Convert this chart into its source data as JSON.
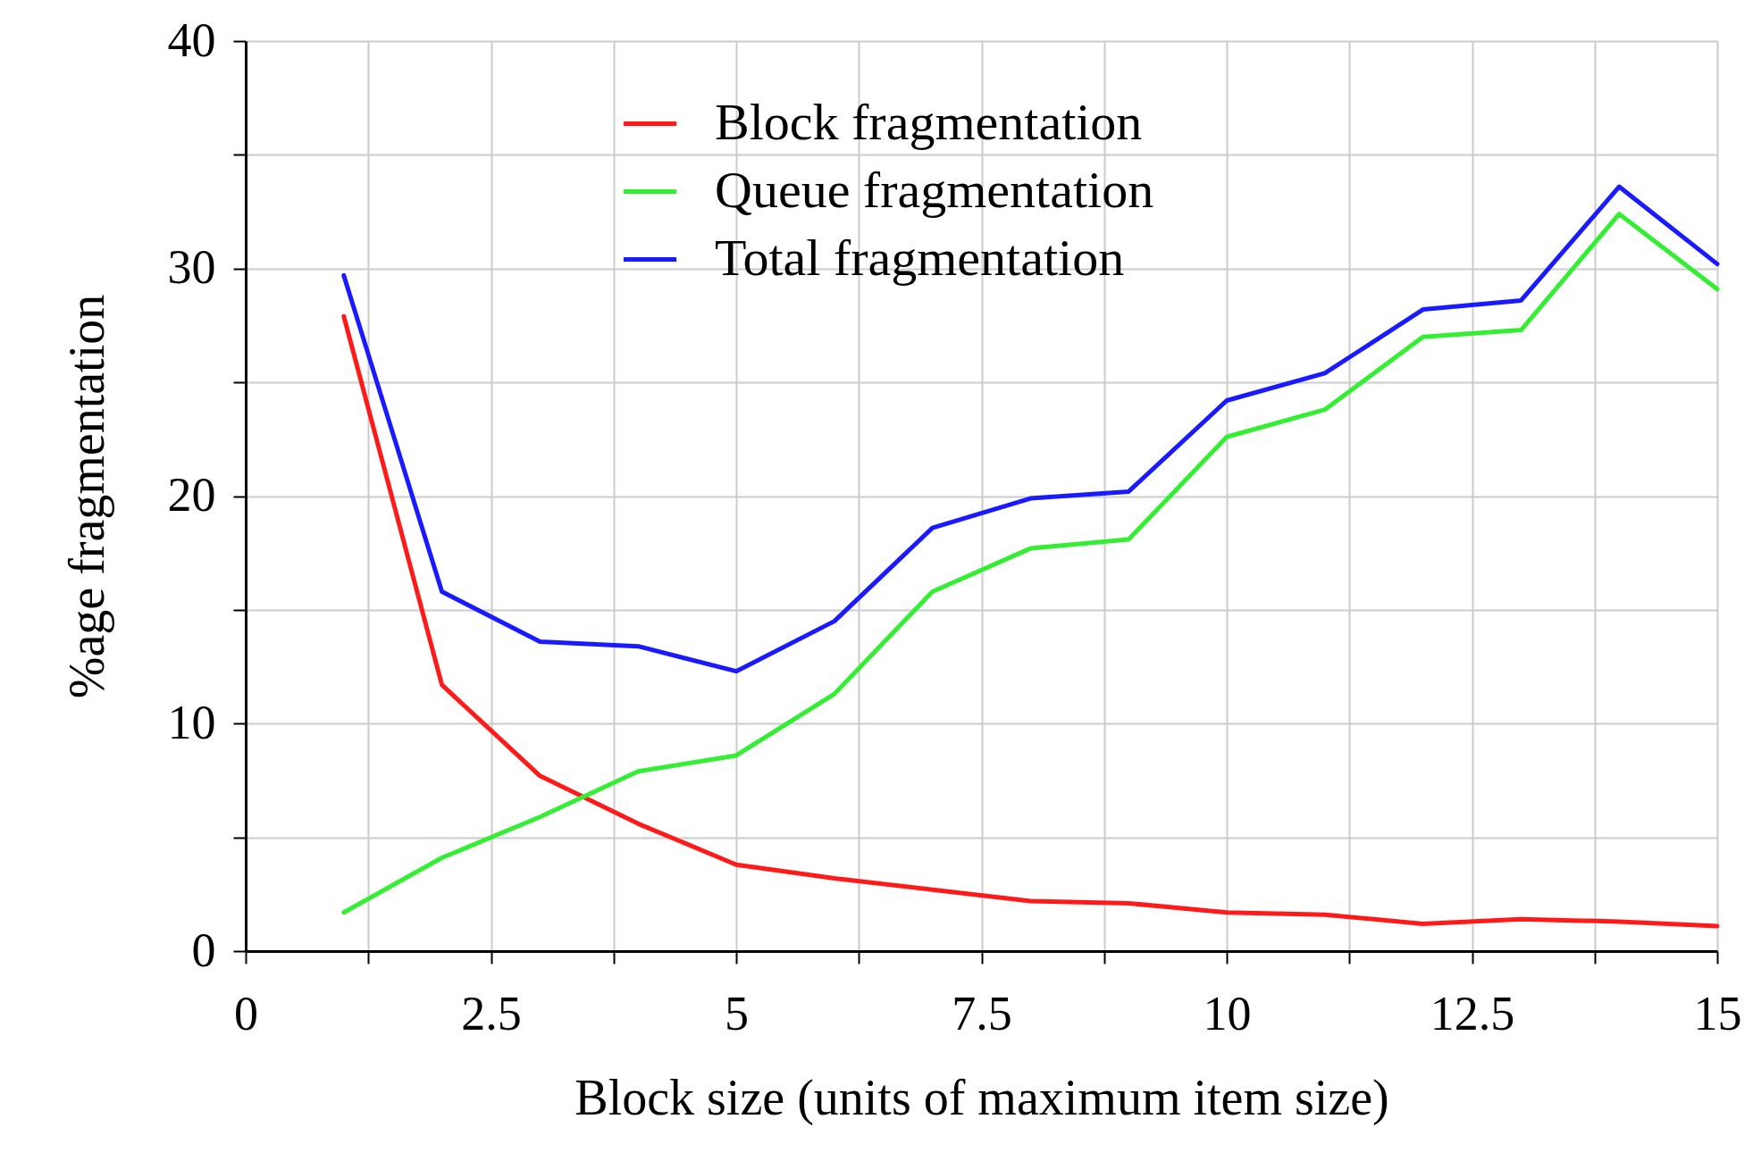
{
  "chart_data": {
    "type": "line",
    "xlabel": "Block size (units of maximum item size)",
    "ylabel": "%age fragmentation",
    "x": [
      1,
      2,
      3,
      4,
      5,
      6,
      7,
      8,
      9,
      10,
      11,
      12,
      13,
      14,
      15
    ],
    "series": [
      {
        "name": "Block fragmentation",
        "color": "#ff1a1a",
        "values": [
          27.9,
          11.7,
          7.7,
          5.6,
          3.8,
          3.2,
          2.7,
          2.2,
          2.1,
          1.7,
          1.6,
          1.2,
          1.4,
          1.3,
          1.1
        ]
      },
      {
        "name": "Queue fragmentation",
        "color": "#33ee33",
        "values": [
          1.7,
          4.1,
          5.9,
          7.9,
          8.6,
          11.3,
          15.8,
          17.7,
          18.1,
          22.6,
          23.8,
          27.0,
          27.3,
          32.4,
          29.1
        ]
      },
      {
        "name": "Total fragmentation",
        "color": "#1a1aff",
        "values": [
          29.7,
          15.8,
          13.6,
          13.4,
          12.3,
          14.5,
          18.6,
          19.9,
          20.2,
          24.2,
          25.4,
          28.2,
          28.6,
          33.6,
          30.2
        ]
      }
    ],
    "xlim": [
      0,
      15
    ],
    "xticks": [
      0,
      {
        "value": 1.25,
        "label": null
      },
      2.5,
      {
        "value": 3.75,
        "label": null
      },
      5,
      {
        "value": 6.25,
        "label": null
      },
      7.5,
      {
        "value": 8.75,
        "label": null
      },
      10,
      {
        "value": 11.25,
        "label": null
      },
      12.5,
      {
        "value": 13.75,
        "label": null
      },
      15
    ],
    "ylim": [
      0,
      40
    ],
    "yticks": [
      0,
      {
        "value": 5,
        "label": null
      },
      10,
      {
        "value": 15,
        "label": null
      },
      20,
      {
        "value": 25,
        "label": null
      },
      30,
      {
        "value": 35,
        "label": null
      },
      40
    ],
    "grid": true,
    "legend": "top",
    "marker": "none",
    "line_style": "solid"
  }
}
